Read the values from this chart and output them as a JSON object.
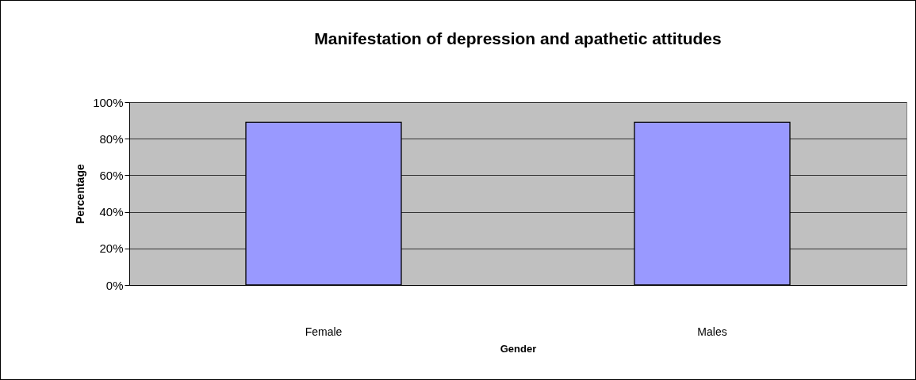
{
  "chart_data": {
    "type": "bar",
    "title": "Manifestation of depression and apathetic attitudes",
    "xlabel": "Gender",
    "ylabel": "Percentage",
    "categories": [
      "Female",
      "Males"
    ],
    "values": [
      89,
      89
    ],
    "color": "#9999ff",
    "ylim": [
      0,
      100
    ],
    "yticks": [
      {
        "value": 0,
        "label": "0%"
      },
      {
        "value": 20,
        "label": "20%"
      },
      {
        "value": 40,
        "label": "40%"
      },
      {
        "value": 60,
        "label": "60%"
      },
      {
        "value": 80,
        "label": "80%"
      },
      {
        "value": 100,
        "label": "100%"
      }
    ],
    "grid": "y"
  }
}
